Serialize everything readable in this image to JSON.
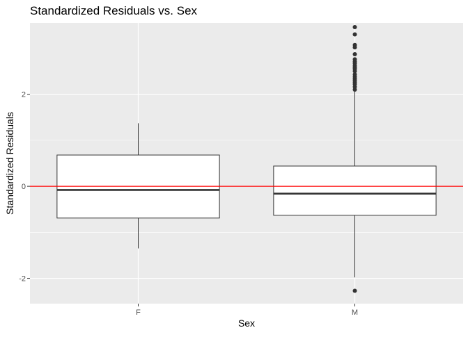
{
  "chart_data": {
    "type": "boxplot",
    "title": "Standardized Residuals vs. Sex",
    "xlabel": "Sex",
    "ylabel": "Standardized Residuals",
    "categories": [
      "F",
      "M"
    ],
    "ylim": [
      -2.55,
      3.55
    ],
    "y_ticks": [
      -2,
      0,
      2
    ],
    "y_tick_labels": [
      "-2",
      "0",
      "2"
    ],
    "grid": true,
    "reference_line": {
      "y": 0,
      "color": "#ff0000"
    },
    "boxes": [
      {
        "category": "F",
        "whisker_low": -1.35,
        "q1": -0.69,
        "median": -0.08,
        "q3": 0.68,
        "whisker_high": 1.37,
        "outliers": []
      },
      {
        "category": "M",
        "whisker_low": -1.98,
        "q1": -0.63,
        "median": -0.16,
        "q3": 0.44,
        "whisker_high": 2.06,
        "outliers": [
          3.46,
          3.3,
          3.07,
          3.02,
          2.87,
          2.76,
          2.71,
          2.67,
          2.62,
          2.58,
          2.55,
          2.5,
          2.43,
          2.38,
          2.34,
          2.3,
          2.26,
          2.22,
          2.16,
          2.1,
          -2.27
        ]
      }
    ],
    "colors": {
      "panel_background": "#ebebeb",
      "grid_major": "#ffffff",
      "box_fill": "#ffffff",
      "box_line": "#333333",
      "reference_line": "#ff0000",
      "text": "#000000",
      "tick_text": "#4d4d4d"
    }
  }
}
